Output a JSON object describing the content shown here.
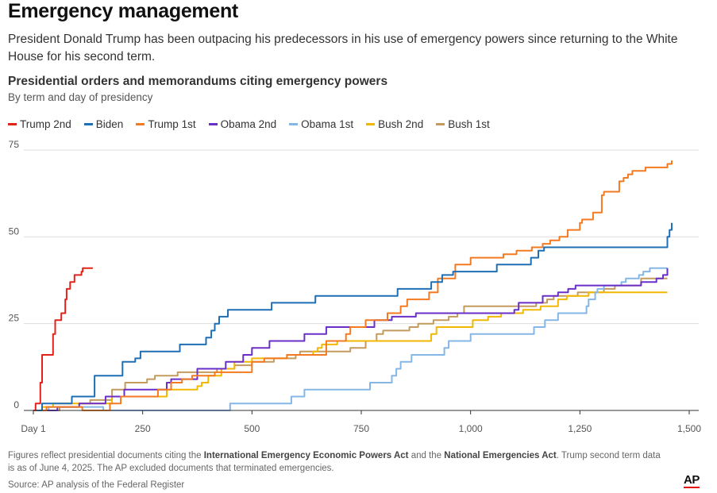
{
  "header": {
    "title": "Emergency management",
    "dek": "President Donald Trump has been outpacing his predecessors in his use of emergency powers since returning to the White House for his second term."
  },
  "footer": {
    "note_1": "Figures reflect presidential documents citing the ",
    "note_bold_1": "International Emergency Economic Powers Act",
    "note_2": " and the ",
    "note_bold_2": "National Emergencies Act",
    "note_3": ". Trump second term data is as of June 4, 2025. The AP excluded documents that terminated emergencies.",
    "source": "Source: AP analysis of the Federal Register",
    "logo": "AP"
  },
  "colors": {
    "grid": "#dddddd",
    "axis": "#333333",
    "tick_text": "#555555"
  },
  "chart_data": {
    "type": "line",
    "title": "Presidential orders and memorandums citing emergency powers",
    "subtitle": "By term and day of presidency",
    "xlabel": "",
    "ylabel": "",
    "xlim": [
      0,
      1500
    ],
    "ylim": [
      0,
      75
    ],
    "grid": true,
    "legend_position": "top-left",
    "x_ticks": [
      0,
      250,
      500,
      750,
      1000,
      1250,
      1500
    ],
    "x_tick_labels": [
      "Day 1",
      "250",
      "500",
      "750",
      "1,000",
      "1,250",
      "1,500"
    ],
    "y_ticks": [
      0,
      25,
      50,
      75
    ],
    "y_tick_labels": [
      "0",
      "25",
      "50",
      "75"
    ],
    "series": [
      {
        "name": "Trump 2nd",
        "color": "#e2231a",
        "points": [
          [
            0,
            0
          ],
          [
            5,
            2
          ],
          [
            16,
            8
          ],
          [
            20,
            16
          ],
          [
            45,
            22
          ],
          [
            50,
            26
          ],
          [
            64,
            28
          ],
          [
            73,
            32
          ],
          [
            76,
            35
          ],
          [
            84,
            37
          ],
          [
            94,
            39
          ],
          [
            110,
            40
          ],
          [
            113,
            41
          ],
          [
            136,
            41
          ]
        ]
      },
      {
        "name": "Biden",
        "color": "#1f6fb5",
        "points": [
          [
            0,
            0
          ],
          [
            20,
            2
          ],
          [
            88,
            4
          ],
          [
            140,
            10
          ],
          [
            204,
            14
          ],
          [
            233,
            15
          ],
          [
            245,
            17
          ],
          [
            335,
            19
          ],
          [
            395,
            21
          ],
          [
            407,
            23
          ],
          [
            415,
            25
          ],
          [
            425,
            27
          ],
          [
            445,
            29
          ],
          [
            545,
            31
          ],
          [
            645,
            33
          ],
          [
            833,
            35
          ],
          [
            910,
            37
          ],
          [
            935,
            39
          ],
          [
            960,
            40
          ],
          [
            1060,
            42
          ],
          [
            1138,
            44
          ],
          [
            1155,
            46
          ],
          [
            1168,
            47
          ],
          [
            1440,
            47
          ],
          [
            1450,
            50
          ],
          [
            1455,
            52
          ],
          [
            1460,
            54
          ]
        ]
      },
      {
        "name": "Trump 1st",
        "color": "#f37a20",
        "points": [
          [
            0,
            0
          ],
          [
            30,
            1
          ],
          [
            112,
            0
          ],
          [
            175,
            2
          ],
          [
            200,
            4
          ],
          [
            285,
            6
          ],
          [
            315,
            8
          ],
          [
            340,
            9
          ],
          [
            363,
            10
          ],
          [
            415,
            11
          ],
          [
            500,
            14
          ],
          [
            528,
            15
          ],
          [
            580,
            16
          ],
          [
            670,
            20
          ],
          [
            715,
            22
          ],
          [
            725,
            24
          ],
          [
            760,
            26
          ],
          [
            810,
            28
          ],
          [
            840,
            30
          ],
          [
            855,
            32
          ],
          [
            905,
            34
          ],
          [
            925,
            38
          ],
          [
            965,
            42
          ],
          [
            1000,
            44
          ],
          [
            1075,
            45
          ],
          [
            1105,
            46
          ],
          [
            1140,
            47
          ],
          [
            1165,
            48
          ],
          [
            1182,
            49
          ],
          [
            1203,
            50
          ],
          [
            1222,
            52
          ],
          [
            1250,
            54
          ],
          [
            1255,
            55
          ],
          [
            1280,
            57
          ],
          [
            1300,
            62
          ],
          [
            1305,
            63
          ],
          [
            1340,
            66
          ],
          [
            1350,
            67
          ],
          [
            1360,
            68
          ],
          [
            1370,
            69
          ],
          [
            1400,
            70
          ],
          [
            1450,
            71
          ],
          [
            1460,
            72
          ]
        ]
      },
      {
        "name": "Obama 2nd",
        "color": "#6a2fc8",
        "points": [
          [
            0,
            0
          ],
          [
            55,
            1
          ],
          [
            105,
            2
          ],
          [
            165,
            4
          ],
          [
            208,
            6
          ],
          [
            305,
            8
          ],
          [
            315,
            9
          ],
          [
            375,
            12
          ],
          [
            440,
            14
          ],
          [
            480,
            16
          ],
          [
            500,
            18
          ],
          [
            540,
            20
          ],
          [
            620,
            22
          ],
          [
            670,
            24
          ],
          [
            780,
            26
          ],
          [
            820,
            27
          ],
          [
            875,
            28
          ],
          [
            1100,
            29
          ],
          [
            1110,
            31
          ],
          [
            1165,
            33
          ],
          [
            1200,
            34
          ],
          [
            1223,
            35
          ],
          [
            1240,
            36
          ],
          [
            1390,
            37
          ],
          [
            1425,
            38
          ],
          [
            1440,
            39
          ],
          [
            1450,
            41
          ]
        ]
      },
      {
        "name": "Obama 1st",
        "color": "#84b6e6",
        "points": [
          [
            0,
            0
          ],
          [
            35,
            1
          ],
          [
            160,
            0
          ],
          [
            450,
            2
          ],
          [
            590,
            4
          ],
          [
            620,
            6
          ],
          [
            770,
            8
          ],
          [
            820,
            10
          ],
          [
            830,
            12
          ],
          [
            840,
            14
          ],
          [
            865,
            16
          ],
          [
            940,
            18
          ],
          [
            950,
            20
          ],
          [
            1000,
            22
          ],
          [
            1145,
            24
          ],
          [
            1170,
            26
          ],
          [
            1200,
            28
          ],
          [
            1265,
            30
          ],
          [
            1270,
            32
          ],
          [
            1285,
            34
          ],
          [
            1290,
            35
          ],
          [
            1305,
            36
          ],
          [
            1345,
            37
          ],
          [
            1355,
            38
          ],
          [
            1385,
            39
          ],
          [
            1395,
            40
          ],
          [
            1410,
            41
          ],
          [
            1450,
            41
          ]
        ]
      },
      {
        "name": "Bush 2nd",
        "color": "#f2b700",
        "points": [
          [
            0,
            0
          ],
          [
            20,
            1
          ],
          [
            45,
            2
          ],
          [
            180,
            4
          ],
          [
            305,
            6
          ],
          [
            375,
            7
          ],
          [
            385,
            8
          ],
          [
            400,
            10
          ],
          [
            430,
            12
          ],
          [
            460,
            14
          ],
          [
            500,
            15
          ],
          [
            580,
            16
          ],
          [
            640,
            17
          ],
          [
            650,
            18
          ],
          [
            660,
            19
          ],
          [
            695,
            20
          ],
          [
            910,
            22
          ],
          [
            922,
            24
          ],
          [
            1005,
            26
          ],
          [
            1040,
            27
          ],
          [
            1070,
            28
          ],
          [
            1120,
            29
          ],
          [
            1160,
            30
          ],
          [
            1200,
            32
          ],
          [
            1220,
            33
          ],
          [
            1270,
            34
          ],
          [
            1450,
            34
          ]
        ]
      },
      {
        "name": "Bush 1st",
        "color": "#c49a5d",
        "points": [
          [
            0,
            0
          ],
          [
            60,
            1
          ],
          [
            105,
            2
          ],
          [
            130,
            3
          ],
          [
            180,
            6
          ],
          [
            210,
            8
          ],
          [
            260,
            9
          ],
          [
            278,
            10
          ],
          [
            330,
            11
          ],
          [
            420,
            12
          ],
          [
            460,
            13
          ],
          [
            500,
            14
          ],
          [
            550,
            15
          ],
          [
            600,
            16
          ],
          [
            610,
            17
          ],
          [
            725,
            18
          ],
          [
            760,
            20
          ],
          [
            785,
            22
          ],
          [
            800,
            23
          ],
          [
            860,
            24
          ],
          [
            880,
            25
          ],
          [
            915,
            26
          ],
          [
            950,
            27
          ],
          [
            970,
            28
          ],
          [
            985,
            30
          ],
          [
            1150,
            31
          ],
          [
            1175,
            32
          ],
          [
            1190,
            33
          ],
          [
            1245,
            34
          ],
          [
            1305,
            35
          ],
          [
            1330,
            36
          ],
          [
            1390,
            38
          ],
          [
            1450,
            38
          ]
        ]
      }
    ]
  }
}
